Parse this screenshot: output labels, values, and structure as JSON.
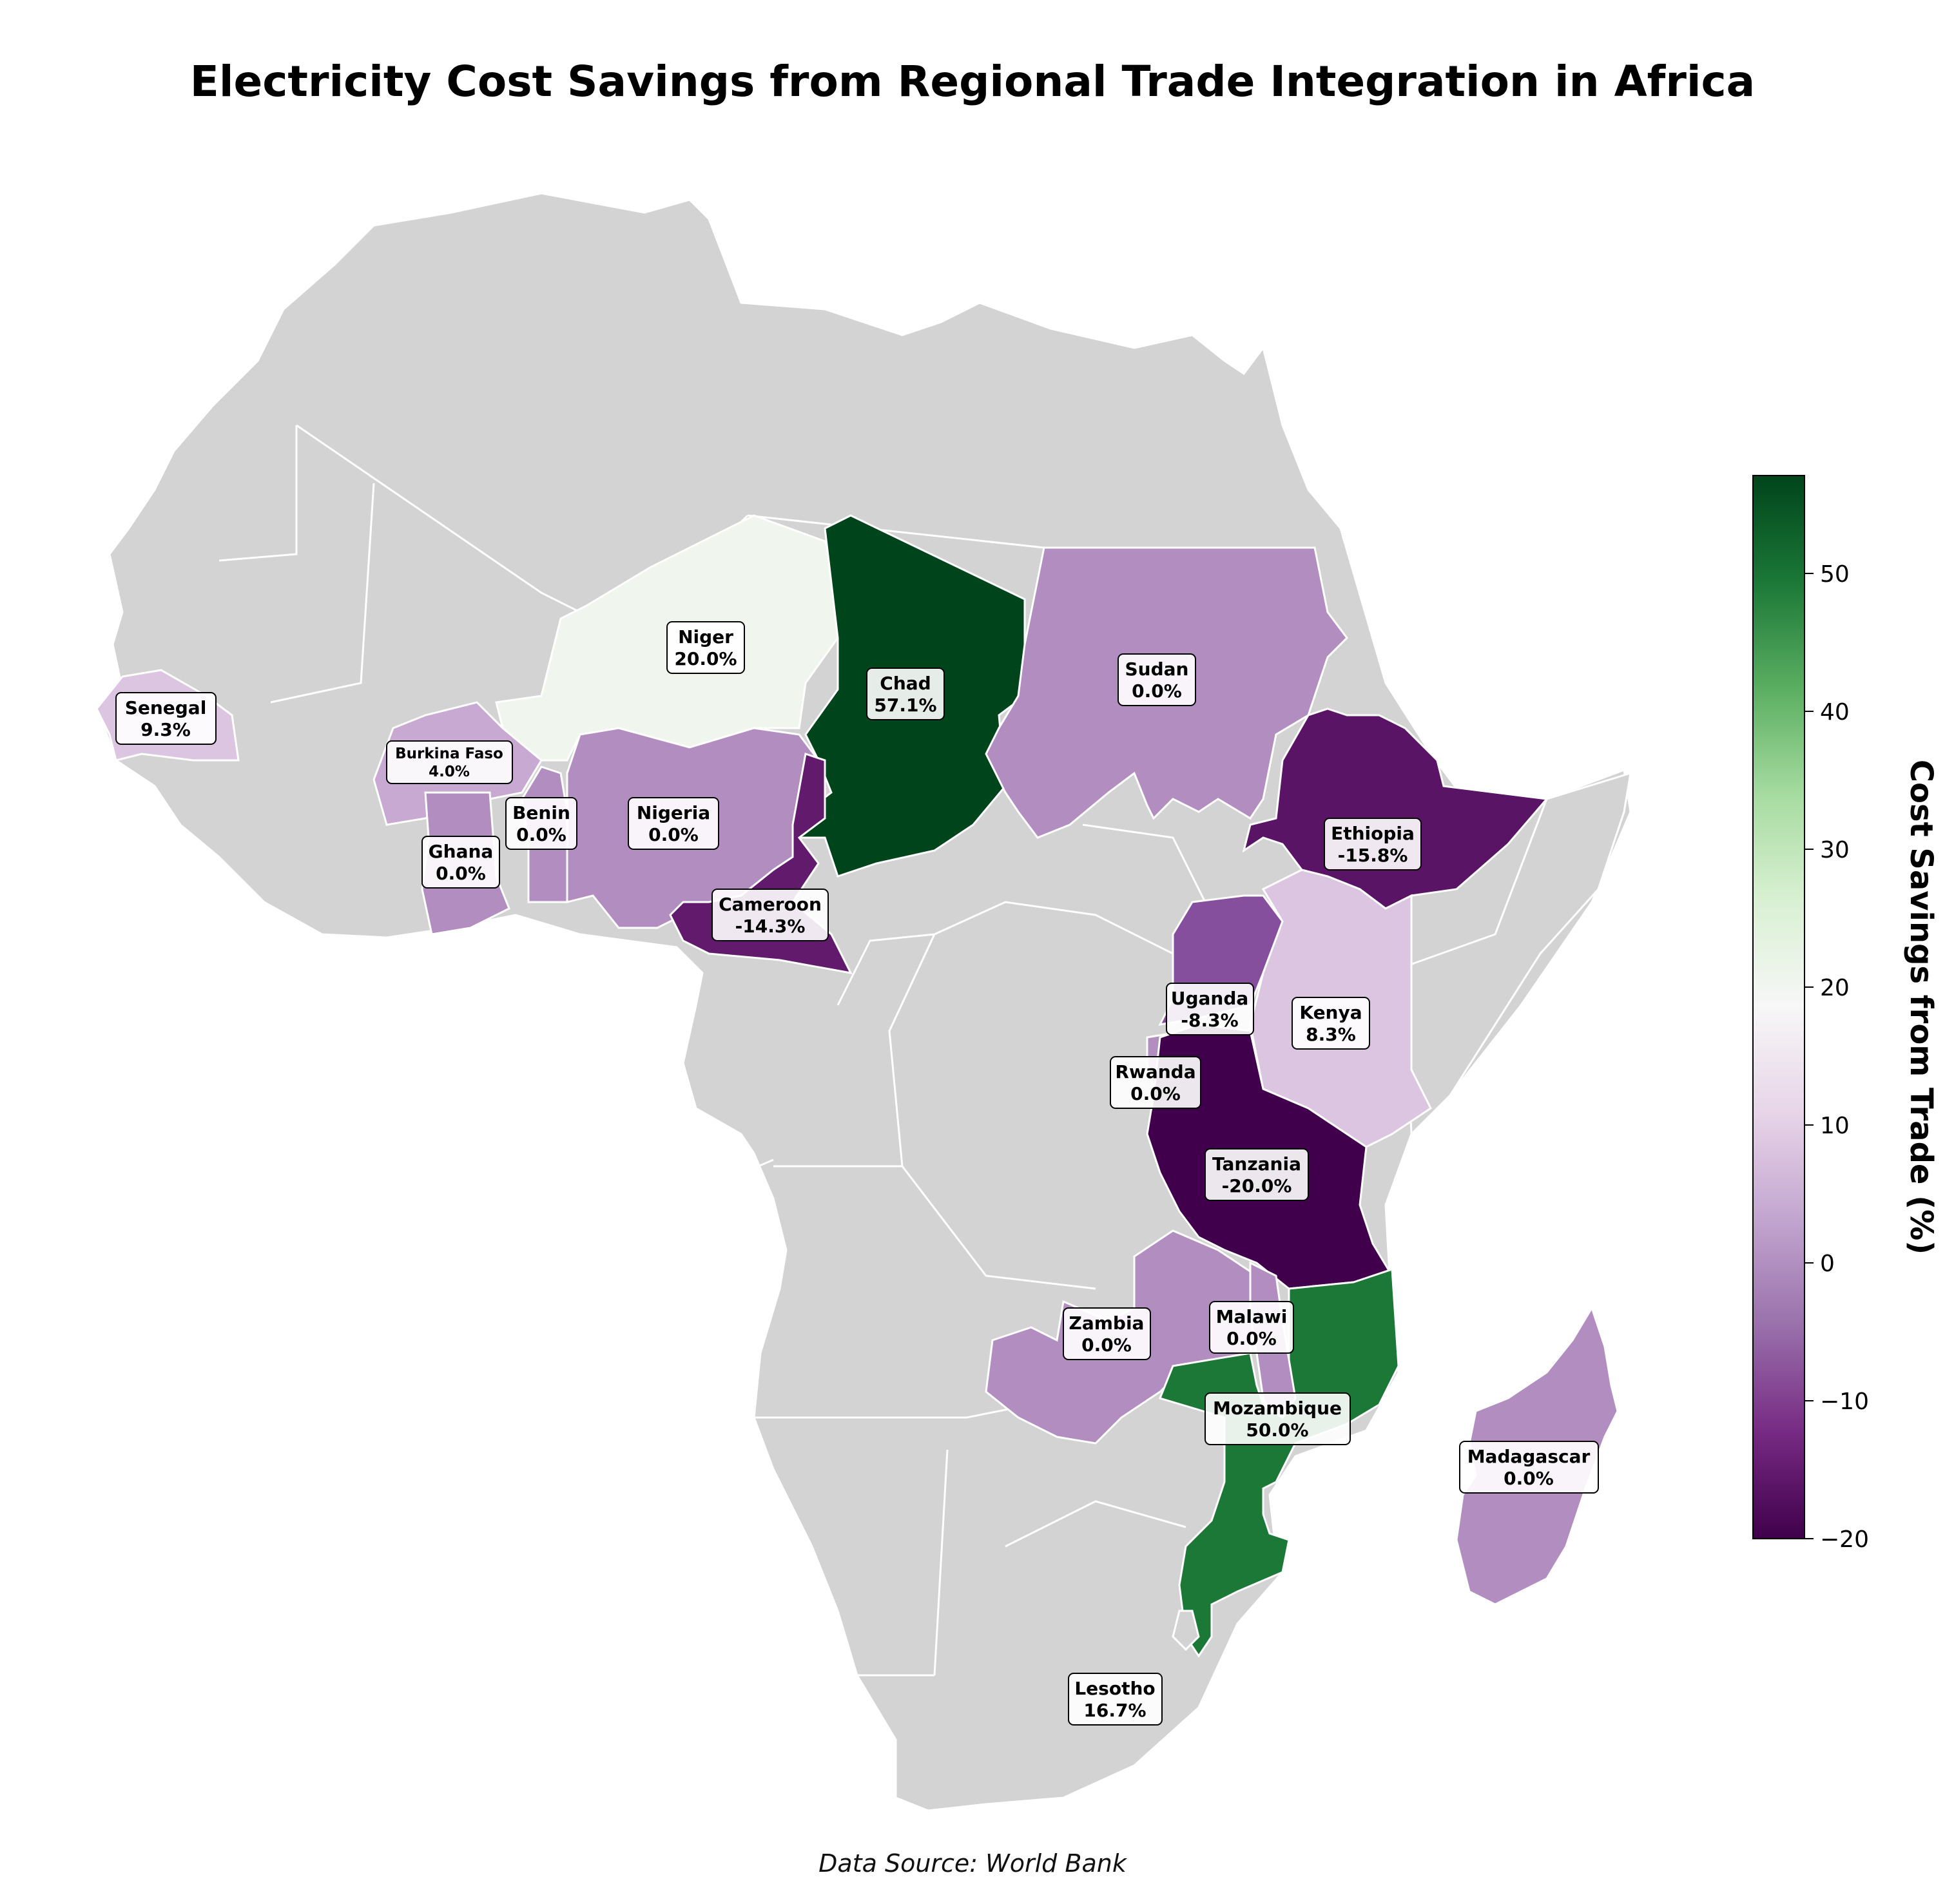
{
  "title": "Electricity Cost Savings from Regional Trade Integration in Africa",
  "source": "Data Source: World Bank",
  "colorbar": {
    "label": "Cost Savings from Trade (%)",
    "min": -20,
    "max": 57.1,
    "ticks": [
      "−20",
      "−10",
      "0",
      "10",
      "20",
      "30",
      "40",
      "50"
    ],
    "colormap": "PRGn",
    "colors": [
      "#40004b",
      "#762a83",
      "#9970ab",
      "#c2a5cf",
      "#e7d4e8",
      "#f7f7f7",
      "#d9f0d3",
      "#a6dba0",
      "#5aae61",
      "#1b7837",
      "#00441b"
    ]
  },
  "no_data_color": "#d3d3d3",
  "countries": [
    {
      "name": "Niger",
      "value": "20.0%",
      "v": 20.0,
      "color": "#f0f5ee"
    },
    {
      "name": "Chad",
      "value": "57.1%",
      "v": 57.1,
      "color": "#00441b"
    },
    {
      "name": "Sudan",
      "value": "0.0%",
      "v": 0.0,
      "color": "#b28ec0"
    },
    {
      "name": "Senegal",
      "value": "9.3%",
      "v": 9.3,
      "color": "#dcc5e0"
    },
    {
      "name": "Burkina Faso",
      "value": "4.0%",
      "v": 4.0,
      "color": "#c8a9d2"
    },
    {
      "name": "Benin",
      "value": "0.0%",
      "v": 0.0,
      "color": "#b28ec0"
    },
    {
      "name": "Nigeria",
      "value": "0.0%",
      "v": 0.0,
      "color": "#b28ec0"
    },
    {
      "name": "Ghana",
      "value": "0.0%",
      "v": 0.0,
      "color": "#b28ec0"
    },
    {
      "name": "Cameroon",
      "value": "-14.3%",
      "v": -14.3,
      "color": "#611a6c"
    },
    {
      "name": "Ethiopia",
      "value": "-15.8%",
      "v": -15.8,
      "color": "#5a1466"
    },
    {
      "name": "Uganda",
      "value": "-8.3%",
      "v": -8.3,
      "color": "#854f9d"
    },
    {
      "name": "Kenya",
      "value": "8.3%",
      "v": 8.3,
      "color": "#dcc5e0"
    },
    {
      "name": "Rwanda",
      "value": "0.0%",
      "v": 0.0,
      "color": "#b28ec0"
    },
    {
      "name": "Tanzania",
      "value": "-20.0%",
      "v": -20.0,
      "color": "#40004b"
    },
    {
      "name": "Zambia",
      "value": "0.0%",
      "v": 0.0,
      "color": "#b28ec0"
    },
    {
      "name": "Malawi",
      "value": "0.0%",
      "v": 0.0,
      "color": "#b28ec0"
    },
    {
      "name": "Mozambique",
      "value": "50.0%",
      "v": 50.0,
      "color": "#1b7837"
    },
    {
      "name": "Madagascar",
      "value": "0.0%",
      "v": 0.0,
      "color": "#b28ec0"
    },
    {
      "name": "Lesotho",
      "value": "16.7%",
      "v": 16.7,
      "color": "#f2eef3"
    }
  ]
}
